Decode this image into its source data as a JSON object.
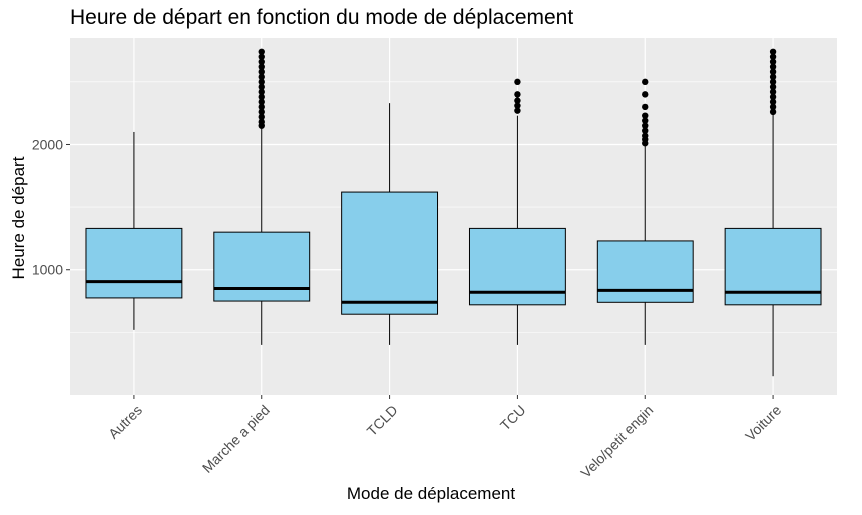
{
  "chart_data": {
    "type": "boxplot",
    "title": "Heure de départ en fonction du mode de déplacement",
    "xlabel": "Mode de déplacement",
    "ylabel": "Heure de départ",
    "ylim": [
      0,
      2850
    ],
    "yticks": [
      1000,
      2000
    ],
    "grid": true,
    "colors": {
      "panel": "#ebebeb",
      "grid": "#ffffff",
      "box_fill": "#87ceeb",
      "line": "#000000"
    },
    "categories": [
      "Autres",
      "Marche a pied",
      "TCLD",
      "TCU",
      "Velo/petit engin",
      "Voiture"
    ],
    "boxes": [
      {
        "category": "Autres",
        "whisker_low": 520,
        "q1": 775,
        "median": 905,
        "q3": 1330,
        "whisker_high": 2100,
        "outliers": []
      },
      {
        "category": "Marche a pied",
        "whisker_low": 400,
        "q1": 750,
        "median": 850,
        "q3": 1300,
        "whisker_high": 2130,
        "outliers": [
          2150,
          2180,
          2220,
          2260,
          2300,
          2340,
          2380,
          2420,
          2460,
          2500,
          2540,
          2580,
          2620,
          2660,
          2700,
          2740
        ]
      },
      {
        "category": "TCLD",
        "whisker_low": 400,
        "q1": 645,
        "median": 740,
        "q3": 1620,
        "whisker_high": 2330,
        "outliers": []
      },
      {
        "category": "TCU",
        "whisker_low": 400,
        "q1": 720,
        "median": 820,
        "q3": 1330,
        "whisker_high": 2230,
        "outliers": [
          2270,
          2310,
          2350,
          2400,
          2500
        ]
      },
      {
        "category": "Velo/petit engin",
        "whisker_low": 400,
        "q1": 740,
        "median": 835,
        "q3": 1230,
        "whisker_high": 1990,
        "outliers": [
          2010,
          2040,
          2070,
          2110,
          2150,
          2190,
          2230,
          2300,
          2400,
          2500
        ]
      },
      {
        "category": "Voiture",
        "whisker_low": 150,
        "q1": 720,
        "median": 820,
        "q3": 1330,
        "whisker_high": 2240,
        "outliers": [
          2260,
          2300,
          2340,
          2380,
          2420,
          2460,
          2500,
          2540,
          2580,
          2620,
          2660,
          2700,
          2740
        ]
      }
    ]
  }
}
